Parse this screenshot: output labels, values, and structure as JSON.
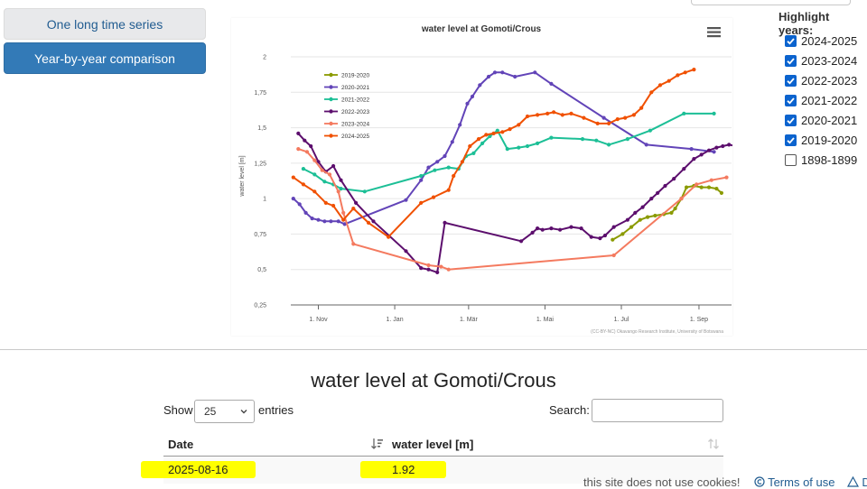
{
  "nav": {
    "btn_long": "One long time series",
    "btn_year": "Year-by-year comparison"
  },
  "highlight": {
    "title": "Highlight years:",
    "items": [
      {
        "label": "2024-2025",
        "checked": true
      },
      {
        "label": "2023-2024",
        "checked": true
      },
      {
        "label": "2022-2023",
        "checked": true
      },
      {
        "label": "2021-2022",
        "checked": true
      },
      {
        "label": "2020-2021",
        "checked": true
      },
      {
        "label": "2019-2020",
        "checked": true
      },
      {
        "label": "1898-1899",
        "checked": false
      }
    ]
  },
  "chart_data": {
    "type": "line",
    "title": "water level at Gomoti/Crous",
    "ylabel": "water level [m]",
    "xlabel": "",
    "credit": "(CC-BY-NC) Okavango Research Institute, University of Botswana",
    "ylim": [
      0.25,
      2.0
    ],
    "yticks": [
      "2",
      "1,75",
      "1,5",
      "1,25",
      "1",
      "0,75",
      "0,5",
      "0,25"
    ],
    "ytick_values": [
      2.0,
      1.75,
      1.5,
      1.25,
      1.0,
      0.75,
      0.5,
      0.25
    ],
    "x_unit": "days since 1 Nov",
    "xlim": [
      -22,
      330
    ],
    "xticks": [
      "1. Nov",
      "1. Jan",
      "1. Mär",
      "1. Mai",
      "1. Jul",
      "1. Sep"
    ],
    "xtick_values": [
      0,
      61,
      120,
      181,
      242,
      304
    ],
    "legend_position": "top-left",
    "series": [
      {
        "name": "2019-2020",
        "color": "#8a9a00",
        "points": [
          [
            235,
            0.71
          ],
          [
            243,
            0.75
          ],
          [
            250,
            0.8
          ],
          [
            257,
            0.85
          ],
          [
            263,
            0.87
          ],
          [
            269,
            0.88
          ],
          [
            276,
            0.89
          ],
          [
            282,
            0.9
          ],
          [
            285,
            0.93
          ],
          [
            290,
            1.0
          ],
          [
            294,
            1.08
          ],
          [
            300,
            1.09
          ],
          [
            306,
            1.08
          ],
          [
            312,
            1.08
          ],
          [
            318,
            1.07
          ],
          [
            322,
            1.04
          ]
        ]
      },
      {
        "name": "2020-2021",
        "color": "#6244b8",
        "points": [
          [
            -20,
            1.0
          ],
          [
            -15,
            0.96
          ],
          [
            -10,
            0.9
          ],
          [
            -5,
            0.86
          ],
          [
            0,
            0.85
          ],
          [
            5,
            0.84
          ],
          [
            10,
            0.84
          ],
          [
            16,
            0.84
          ],
          [
            21,
            0.82
          ],
          [
            70,
            0.99
          ],
          [
            82,
            1.13
          ],
          [
            88,
            1.22
          ],
          [
            95,
            1.26
          ],
          [
            101,
            1.3
          ],
          [
            107,
            1.4
          ],
          [
            113,
            1.52
          ],
          [
            119,
            1.67
          ],
          [
            123,
            1.72
          ],
          [
            129,
            1.8
          ],
          [
            136,
            1.86
          ],
          [
            141,
            1.89
          ],
          [
            147,
            1.89
          ],
          [
            157,
            1.86
          ],
          [
            173,
            1.89
          ],
          [
            186,
            1.81
          ],
          [
            228,
            1.57
          ],
          [
            262,
            1.38
          ],
          [
            298,
            1.35
          ],
          [
            316,
            1.33
          ]
        ]
      },
      {
        "name": "2021-2022",
        "color": "#1cbf96",
        "points": [
          [
            -12,
            1.21
          ],
          [
            -3,
            1.17
          ],
          [
            5,
            1.12
          ],
          [
            12,
            1.1
          ],
          [
            18,
            1.07
          ],
          [
            37,
            1.05
          ],
          [
            82,
            1.16
          ],
          [
            93,
            1.2
          ],
          [
            104,
            1.22
          ],
          [
            112,
            1.21
          ],
          [
            118,
            1.3
          ],
          [
            124,
            1.32
          ],
          [
            131,
            1.39
          ],
          [
            137,
            1.44
          ],
          [
            143,
            1.48
          ],
          [
            151,
            1.35
          ],
          [
            160,
            1.36
          ],
          [
            167,
            1.37
          ],
          [
            175,
            1.39
          ],
          [
            186,
            1.43
          ],
          [
            211,
            1.42
          ],
          [
            222,
            1.41
          ],
          [
            232,
            1.38
          ],
          [
            247,
            1.42
          ],
          [
            265,
            1.48
          ],
          [
            292,
            1.6
          ],
          [
            316,
            1.6
          ]
        ]
      },
      {
        "name": "2022-2023",
        "color": "#5c0e6d",
        "points": [
          [
            -16,
            1.46
          ],
          [
            -11,
            1.41
          ],
          [
            -6,
            1.37
          ],
          [
            0,
            1.26
          ],
          [
            6,
            1.19
          ],
          [
            12,
            1.23
          ],
          [
            18,
            1.13
          ],
          [
            30,
            0.97
          ],
          [
            44,
            0.84
          ],
          [
            70,
            0.63
          ],
          [
            82,
            0.51
          ],
          [
            88,
            0.5
          ],
          [
            95,
            0.48
          ],
          [
            101,
            0.83
          ],
          [
            162,
            0.7
          ],
          [
            171,
            0.76
          ],
          [
            175,
            0.79
          ],
          [
            179,
            0.78
          ],
          [
            186,
            0.79
          ],
          [
            193,
            0.78
          ],
          [
            202,
            0.8
          ],
          [
            210,
            0.79
          ],
          [
            218,
            0.73
          ],
          [
            225,
            0.72
          ],
          [
            229,
            0.74
          ],
          [
            236,
            0.8
          ],
          [
            247,
            0.85
          ],
          [
            253,
            0.9
          ],
          [
            259,
            0.94
          ],
          [
            266,
            1.0
          ],
          [
            271,
            1.04
          ],
          [
            277,
            1.09
          ],
          [
            284,
            1.14
          ],
          [
            292,
            1.21
          ],
          [
            300,
            1.28
          ],
          [
            306,
            1.31
          ],
          [
            312,
            1.34
          ],
          [
            318,
            1.36
          ],
          [
            323,
            1.37
          ],
          [
            328,
            1.38
          ],
          [
            334,
            1.37
          ],
          [
            340,
            1.36
          ]
        ]
      },
      {
        "name": "2023-2024",
        "color": "#f47a5f",
        "points": [
          [
            -16,
            1.35
          ],
          [
            -9,
            1.33
          ],
          [
            -3,
            1.27
          ],
          [
            3,
            1.2
          ],
          [
            9,
            1.17
          ],
          [
            16,
            1.05
          ],
          [
            20,
            0.9
          ],
          [
            28,
            0.68
          ],
          [
            88,
            0.53
          ],
          [
            98,
            0.52
          ],
          [
            104,
            0.5
          ],
          [
            236,
            0.6
          ],
          [
            290,
            1.0
          ],
          [
            302,
            1.1
          ],
          [
            314,
            1.13
          ],
          [
            326,
            1.15
          ]
        ]
      },
      {
        "name": "2024-2025",
        "color": "#f05000",
        "points": [
          [
            -20,
            1.15
          ],
          [
            -12,
            1.1
          ],
          [
            -3,
            1.05
          ],
          [
            6,
            0.97
          ],
          [
            12,
            0.95
          ],
          [
            20,
            0.85
          ],
          [
            28,
            0.93
          ],
          [
            40,
            0.83
          ],
          [
            56,
            0.73
          ],
          [
            82,
            0.97
          ],
          [
            92,
            1.01
          ],
          [
            104,
            1.06
          ],
          [
            108,
            1.16
          ],
          [
            115,
            1.26
          ],
          [
            121,
            1.37
          ],
          [
            128,
            1.42
          ],
          [
            134,
            1.45
          ],
          [
            140,
            1.46
          ],
          [
            147,
            1.47
          ],
          [
            153,
            1.49
          ],
          [
            160,
            1.52
          ],
          [
            167,
            1.58
          ],
          [
            175,
            1.59
          ],
          [
            183,
            1.6
          ],
          [
            188,
            1.61
          ],
          [
            195,
            1.59
          ],
          [
            202,
            1.6
          ],
          [
            212,
            1.57
          ],
          [
            223,
            1.53
          ],
          [
            232,
            1.53
          ],
          [
            239,
            1.56
          ],
          [
            245,
            1.57
          ],
          [
            252,
            1.59
          ],
          [
            258,
            1.64
          ],
          [
            266,
            1.75
          ],
          [
            273,
            1.8
          ],
          [
            280,
            1.83
          ],
          [
            287,
            1.87
          ],
          [
            293,
            1.89
          ],
          [
            300,
            1.91
          ]
        ]
      }
    ]
  },
  "table": {
    "title": "water level at Gomoti/Crous",
    "show_label": "Show",
    "length_value": "25",
    "entries_label": "entries",
    "search_label": "Search:",
    "search_value": "",
    "col_date": "Date",
    "col_level": "water level [m]",
    "rows": [
      {
        "date": "2025-08-16",
        "level": "1.92"
      }
    ]
  },
  "footer": {
    "cookies": "this site does not use cookies!",
    "terms": "Terms of use",
    "more": "Di"
  },
  "colors": {
    "primary_button": "#337ab7",
    "checkbox": "#0b63ce",
    "highlight": "#ffff00"
  }
}
